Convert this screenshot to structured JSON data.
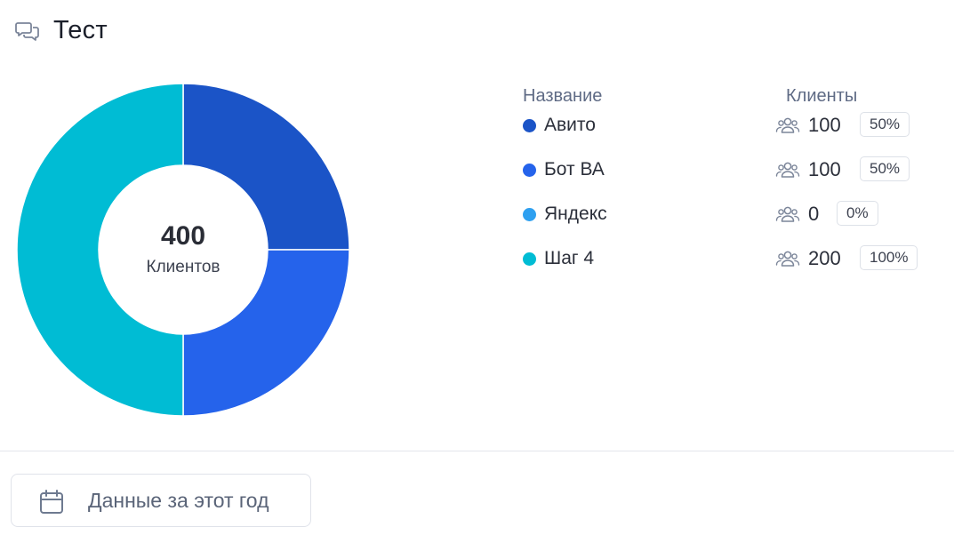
{
  "header": {
    "title": "Тест",
    "icon": "chat-bubbles-icon"
  },
  "chart_data": {
    "type": "pie",
    "subtype": "donut",
    "center": {
      "value": "400",
      "label": "Клиентов"
    },
    "slices": [
      {
        "name": "Авито",
        "value": 100,
        "color": "#1b54c7"
      },
      {
        "name": "Бот ВА",
        "value": 100,
        "color": "#2563eb"
      },
      {
        "name": "Яндекс",
        "value": 0,
        "color": "#2ea0f0"
      },
      {
        "name": "Шаг 4",
        "value": 200,
        "color": "#00bcd4"
      }
    ]
  },
  "legend": {
    "name_header": "Название",
    "clients_header": "Клиенты",
    "rows": [
      {
        "name": "Авито",
        "count": "100",
        "percent": "50%",
        "color": "#1b54c7"
      },
      {
        "name": "Бот ВА",
        "count": "100",
        "percent": "50%",
        "color": "#2563eb"
      },
      {
        "name": "Яндекс",
        "count": "0",
        "percent": "0%",
        "color": "#2ea0f0"
      },
      {
        "name": "Шаг 4",
        "count": "200",
        "percent": "100%",
        "color": "#00bcd4"
      }
    ],
    "row_icon": "users-icon"
  },
  "footer": {
    "period_label": "Данные за этот год",
    "icon": "calendar-icon"
  }
}
